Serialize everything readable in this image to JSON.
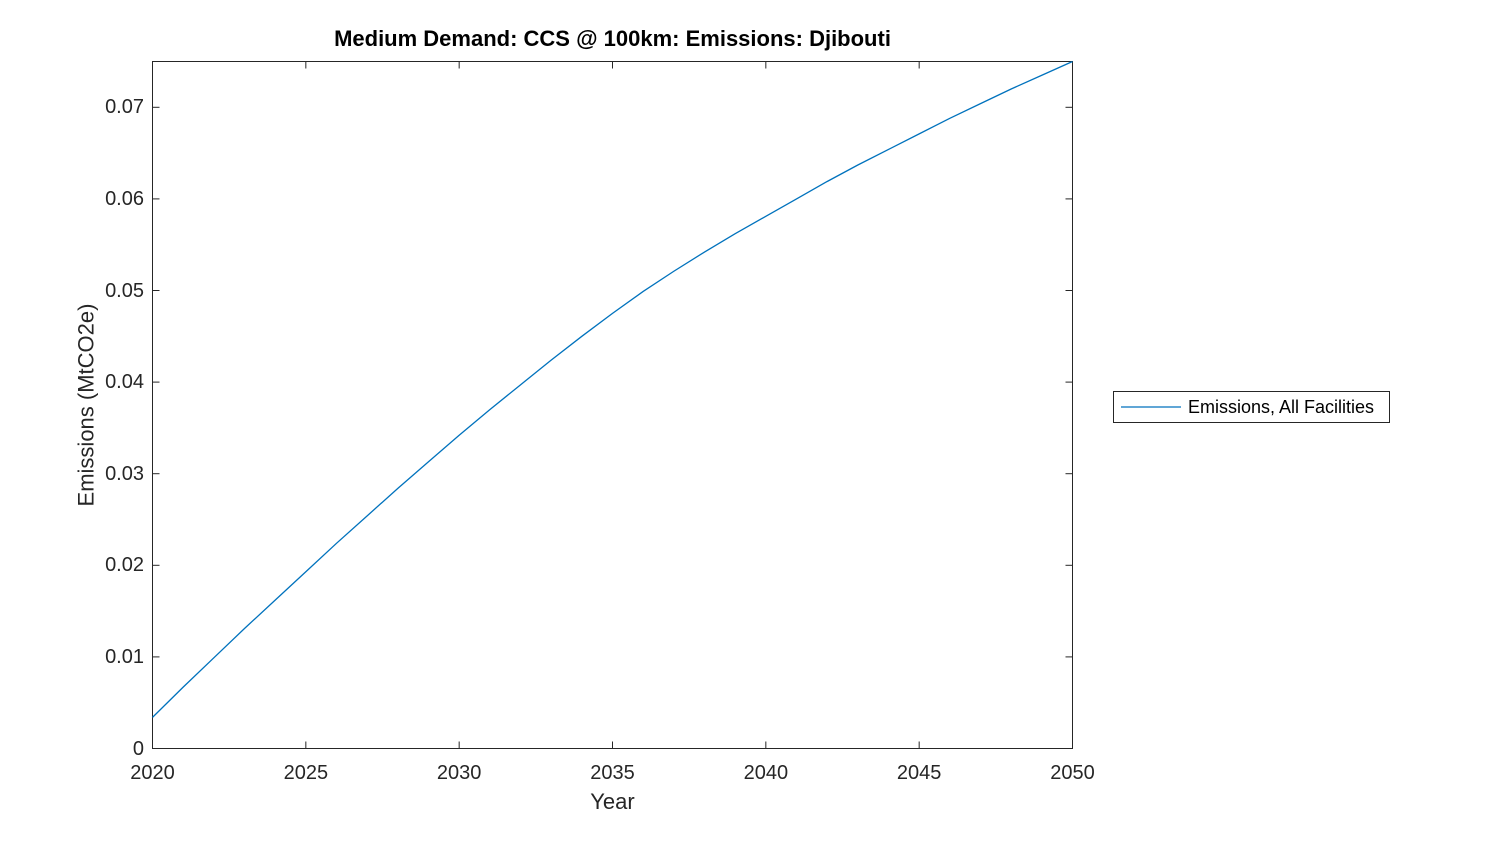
{
  "figure": {
    "background": "#ffffff"
  },
  "colors": {
    "line": "#0072BD",
    "axis": "#262626",
    "title": "#000000",
    "legend_border": "#262626"
  },
  "legend": {
    "entries": [
      {
        "label": "Emissions, All Facilities",
        "color": "#0072BD"
      }
    ]
  },
  "chart_data": {
    "type": "line",
    "title": "Medium Demand: CCS @ 100km: Emissions: Djibouti",
    "xlabel": "Year",
    "ylabel": "Emissions (MtCO2e)",
    "xlim": [
      2020,
      2050
    ],
    "ylim": [
      0,
      0.075
    ],
    "grid": false,
    "box": true,
    "legend_position": "right-outside",
    "x_ticks": [
      2020,
      2025,
      2030,
      2035,
      2040,
      2045,
      2050
    ],
    "x_tick_labels": [
      "2020",
      "2025",
      "2030",
      "2035",
      "2040",
      "2045",
      "2050"
    ],
    "y_ticks": [
      0,
      0.01,
      0.02,
      0.03,
      0.04,
      0.05,
      0.06,
      0.07
    ],
    "y_tick_labels": [
      "0",
      "0.01",
      "0.02",
      "0.03",
      "0.04",
      "0.05",
      "0.06",
      "0.07"
    ],
    "series": [
      {
        "name": "Emissions, All Facilities",
        "color": "#0072BD",
        "x": [
          2020,
          2021,
          2022,
          2023,
          2024,
          2025,
          2026,
          2027,
          2028,
          2029,
          2030,
          2031,
          2032,
          2033,
          2034,
          2035,
          2036,
          2037,
          2038,
          2039,
          2040,
          2041,
          2042,
          2043,
          2044,
          2045,
          2046,
          2047,
          2048,
          2049,
          2050
        ],
        "values": [
          0.0034,
          0.0067,
          0.0099,
          0.0131,
          0.0162,
          0.0193,
          0.0224,
          0.0254,
          0.0284,
          0.0313,
          0.0342,
          0.037,
          0.0397,
          0.0424,
          0.045,
          0.0475,
          0.0499,
          0.0521,
          0.0542,
          0.0562,
          0.0581,
          0.06,
          0.0619,
          0.0637,
          0.0654,
          0.0671,
          0.0688,
          0.0704,
          0.072,
          0.0735,
          0.075
        ]
      }
    ]
  }
}
